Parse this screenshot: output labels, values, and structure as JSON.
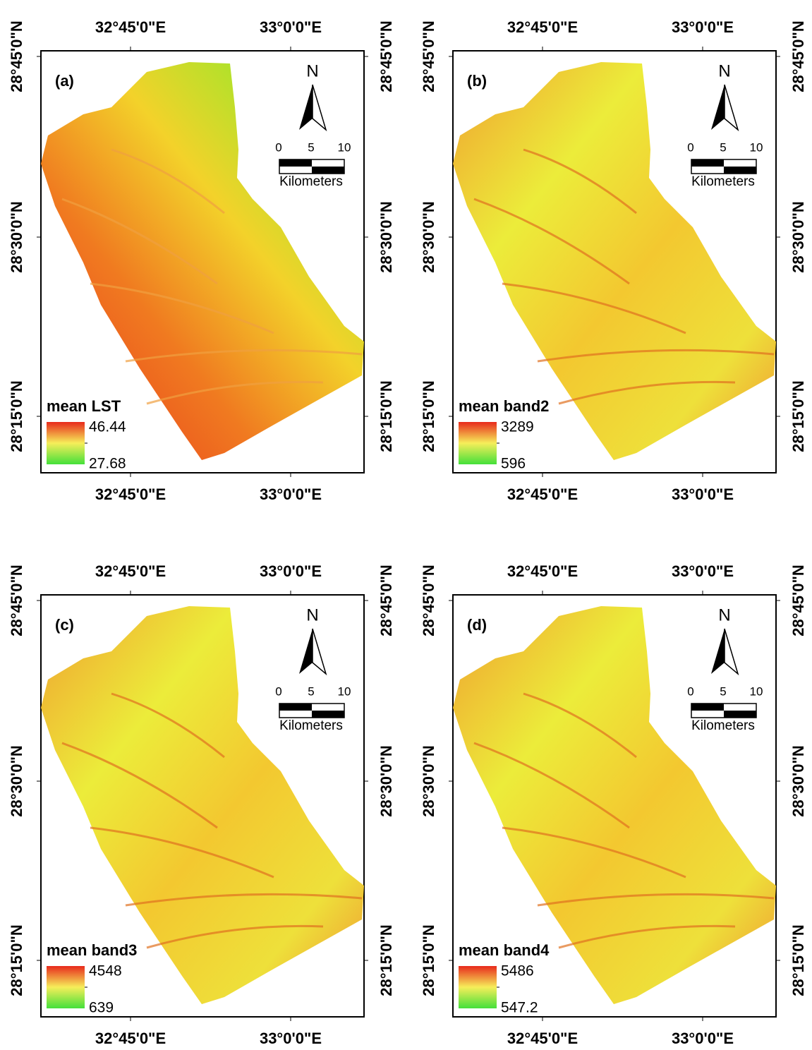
{
  "axes": {
    "x_labels": [
      "32°45'0\"E",
      "33°0'0\"E"
    ],
    "y_labels": [
      "28°45'0\"N",
      "28°30'0\"N",
      "28°15'0\"N"
    ]
  },
  "north": "N",
  "scale_bar": {
    "ticks": [
      "0",
      "5",
      "10"
    ],
    "unit": "Kilometers"
  },
  "panels": [
    {
      "label": "(a)",
      "legend_title": "mean LST",
      "legend_max": "46.44",
      "legend_min": "27.68"
    },
    {
      "label": "(b)",
      "legend_title": "mean band2",
      "legend_max": "3289",
      "legend_min": "596"
    },
    {
      "label": "(c)",
      "legend_title": "mean band3",
      "legend_max": "4548",
      "legend_min": "639"
    },
    {
      "label": "(d)",
      "legend_title": "mean band4",
      "legend_max": "5486",
      "legend_min": "547.2"
    }
  ]
}
